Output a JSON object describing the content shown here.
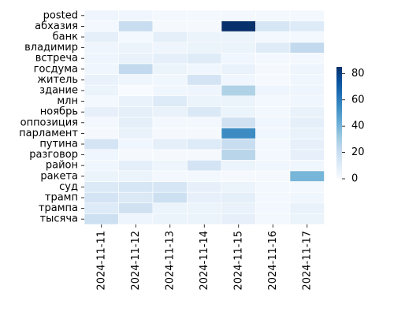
{
  "chart_data": {
    "type": "heatmap",
    "title": "",
    "xlabel": "",
    "ylabel": "",
    "x": [
      "2024-11-11",
      "2024-11-12",
      "2024-11-13",
      "2024-11-14",
      "2024-11-15",
      "2024-11-16",
      "2024-11-17"
    ],
    "y": [
      "posted",
      "абхазия",
      "банк",
      "владимир",
      "встреча",
      "госдума",
      "житель",
      "здание",
      "млн",
      "ноябрь",
      "оппозиция",
      "парламент",
      "путина",
      "разговор",
      "район",
      "ракета",
      "суд",
      "трамп",
      "трампа",
      "тысяча"
    ],
    "values": [
      [
        4,
        3,
        2,
        2,
        2,
        2,
        2
      ],
      [
        2,
        20,
        1,
        1,
        85,
        14,
        11
      ],
      [
        8,
        2,
        8,
        5,
        5,
        2,
        2
      ],
      [
        4,
        5,
        4,
        5,
        5,
        10,
        22
      ],
      [
        4,
        6,
        8,
        10,
        3,
        2,
        2
      ],
      [
        3,
        22,
        5,
        3,
        6,
        1,
        4
      ],
      [
        6,
        4,
        3,
        15,
        3,
        1,
        3
      ],
      [
        5,
        0,
        3,
        4,
        27,
        4,
        4
      ],
      [
        2,
        6,
        11,
        5,
        5,
        2,
        3
      ],
      [
        7,
        8,
        6,
        12,
        5,
        2,
        6
      ],
      [
        2,
        8,
        2,
        2,
        17,
        3,
        8
      ],
      [
        1,
        6,
        1,
        1,
        55,
        3,
        6
      ],
      [
        15,
        3,
        8,
        11,
        20,
        2,
        7
      ],
      [
        3,
        1,
        1,
        1,
        25,
        2,
        7
      ],
      [
        3,
        8,
        4,
        15,
        5,
        3,
        3
      ],
      [
        5,
        5,
        2,
        2,
        1,
        1,
        40
      ],
      [
        12,
        14,
        14,
        7,
        5,
        2,
        2
      ],
      [
        15,
        12,
        18,
        7,
        8,
        2,
        3
      ],
      [
        11,
        17,
        5,
        5,
        6,
        2,
        6
      ],
      [
        18,
        4,
        5,
        5,
        7,
        2,
        5
      ]
    ],
    "colorbar": {
      "min": 0,
      "max": 85,
      "ticks": [
        0,
        20,
        40,
        60,
        80
      ],
      "colormap": "Blues"
    },
    "colors": {
      "low": "#f7fbff",
      "high": "#08306b",
      "cell_border": "#ffffff"
    },
    "grid": false,
    "legend": "right"
  }
}
